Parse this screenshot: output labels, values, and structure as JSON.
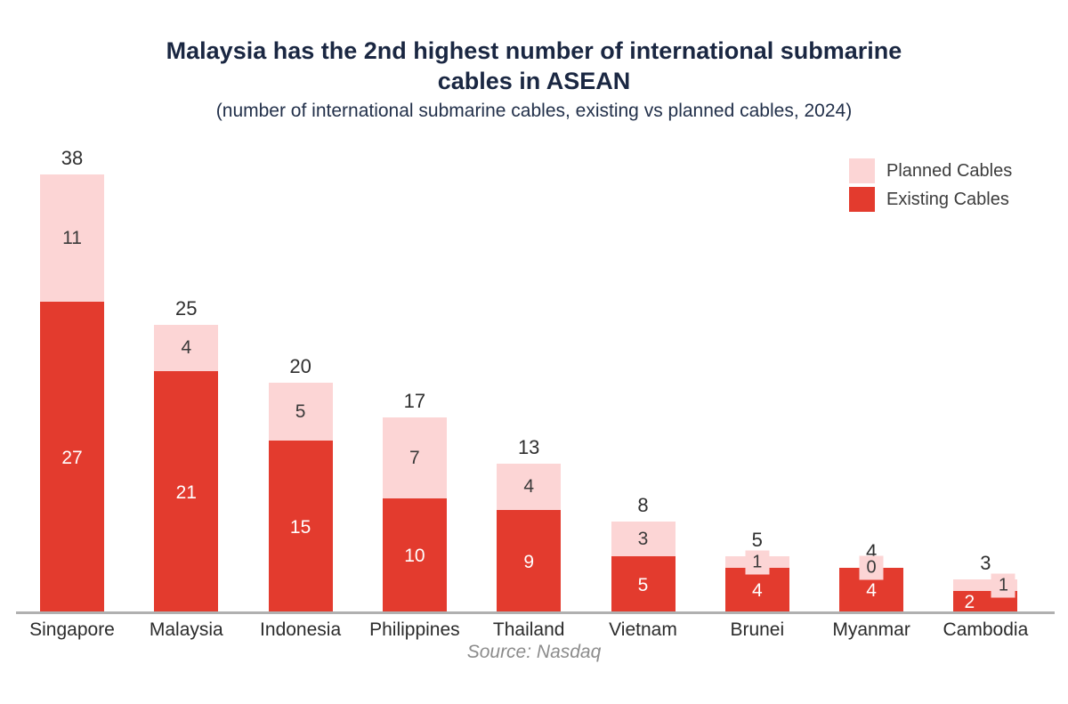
{
  "chart_data": {
    "type": "bar",
    "stacked": true,
    "title": "Malaysia has the 2nd highest number of international submarine cables in ASEAN",
    "subtitle": "(number of international submarine cables, existing vs planned cables, 2024)",
    "source": "Source: Nasdaq",
    "categories": [
      "Singapore",
      "Malaysia",
      "Indonesia",
      "Philippines",
      "Thailand",
      "Vietnam",
      "Brunei",
      "Myanmar",
      "Cambodia"
    ],
    "series": [
      {
        "name": "Existing Cables",
        "color": "#e33b2e",
        "values": [
          27,
          21,
          15,
          10,
          9,
          5,
          4,
          4,
          2
        ]
      },
      {
        "name": "Planned Cables",
        "color": "#fcd5d5",
        "values": [
          11,
          4,
          5,
          7,
          4,
          3,
          1,
          0,
          1
        ]
      }
    ],
    "totals": [
      38,
      25,
      20,
      17,
      13,
      8,
      5,
      4,
      3
    ],
    "ylim": [
      0,
      38
    ],
    "grid": false,
    "legend_position": "top-right",
    "legend_order": [
      "Planned Cables",
      "Existing Cables"
    ],
    "colors": {
      "existing": "#e33b2e",
      "planned": "#fcd5d5",
      "title_text": "#1a2742",
      "label_dark": "#3a3a3a",
      "label_light": "#ffffff",
      "axis_line": "#b0b0b0",
      "source_text": "#8c8c8c"
    }
  }
}
